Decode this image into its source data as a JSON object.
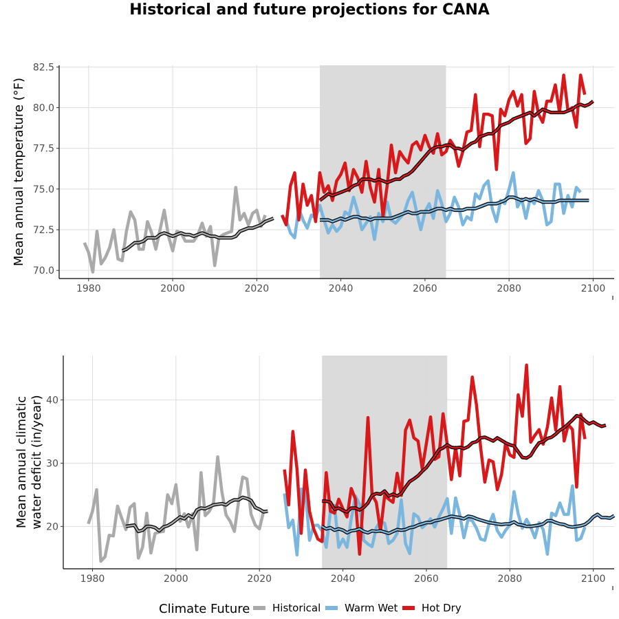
{
  "title": "Historical and future projections for CANA",
  "colors": {
    "Historical": "#aaaaaa",
    "Warm Wet": "#7ab6de",
    "Hot Dry": "#d7191c",
    "smooth": "#000000",
    "shade": "#d9d9d9"
  },
  "legend": {
    "title": "Climate Future",
    "items": [
      "Historical",
      "Warm Wet",
      "Hot Dry"
    ]
  },
  "chart_data": [
    {
      "type": "line",
      "ylabel": "Mean annual temperature (°F)",
      "xlabel": "",
      "xlim": [
        1973,
        2105
      ],
      "ylim": [
        69.5,
        82.6
      ],
      "xticks": [
        1980,
        2000,
        2020,
        2040,
        2060,
        2080,
        2100
      ],
      "yticks": [
        70.0,
        72.5,
        75.0,
        77.5,
        80.0,
        82.5
      ],
      "ytick_labels": [
        "70.0",
        "72.5",
        "75.0",
        "77.5",
        "80.0",
        "82.5"
      ],
      "shaded_period": [
        2035,
        2065
      ],
      "series": [
        {
          "name": "Historical",
          "x_start": 1979,
          "values": [
            71.7,
            71.1,
            69.9,
            72.4,
            70.4,
            70.8,
            71.4,
            72.5,
            70.7,
            70.6,
            72.4,
            73.6,
            73.1,
            71.3,
            71.3,
            73.0,
            72.3,
            71.3,
            72.5,
            73.7,
            72.1,
            71.2,
            72.4,
            72.3,
            71.8,
            71.8,
            71.8,
            72.2,
            72.9,
            72.1,
            72.7,
            70.3,
            72.0,
            72.2,
            72.3,
            72.4,
            75.1,
            73.1,
            73.5,
            72.8,
            73.5,
            73.7,
            72.7,
            73.4
          ]
        },
        {
          "name": "Warm Wet",
          "x_start": 2026,
          "values": [
            73.3,
            73.1,
            72.3,
            72.0,
            73.8,
            73.1,
            72.6,
            73.4,
            73.2,
            74.0,
            73.1,
            72.3,
            72.8,
            72.4,
            72.7,
            73.6,
            73.4,
            74.5,
            73.6,
            72.5,
            72.9,
            73.3,
            71.9,
            73.5,
            73.0,
            74.2,
            73.1,
            72.9,
            73.2,
            73.5,
            74.3,
            74.8,
            73.6,
            72.5,
            73.6,
            74.1,
            73.2,
            74.9,
            74.1,
            73.0,
            73.5,
            74.5,
            73.9,
            72.8,
            73.3,
            73.1,
            74.7,
            74.4,
            75.2,
            75.5,
            73.8,
            73.0,
            74.3,
            74.1,
            75.0,
            76.0,
            73.9,
            74.4,
            73.2,
            74.4,
            74.1,
            74.9,
            74.3,
            72.8,
            73.0,
            75.3,
            75.3,
            73.5,
            74.6,
            73.9,
            75.1,
            74.8
          ]
        },
        {
          "name": "Hot Dry",
          "x_start": 2026,
          "values": [
            73.4,
            72.8,
            75.2,
            76.0,
            73.1,
            75.3,
            74.0,
            74.6,
            73.0,
            76.0,
            74.8,
            75.2,
            74.3,
            75.5,
            75.9,
            76.6,
            74.9,
            76.2,
            75.7,
            74.8,
            76.7,
            75.1,
            74.2,
            76.2,
            73.3,
            75.2,
            77.7,
            76.0,
            77.3,
            76.9,
            76.6,
            77.7,
            77.9,
            77.4,
            78.3,
            77.6,
            77.2,
            78.4,
            77.1,
            77.3,
            78.0,
            77.6,
            76.4,
            77.3,
            78.5,
            78.6,
            80.8,
            77.6,
            79.6,
            79.6,
            79.5,
            76.2,
            79.9,
            79.5,
            80.5,
            81.0,
            80.1,
            80.8,
            77.8,
            78.1,
            81.0,
            79.6,
            79.1,
            80.4,
            80.4,
            81.4,
            79.7,
            82.0,
            79.8,
            80.0,
            78.8,
            82.0,
            80.8
          ]
        }
      ],
      "smooth_series": [
        {
          "name": "Historical (rolling mean)",
          "x_start": 1988,
          "values": [
            71.2,
            71.3,
            71.5,
            71.7,
            71.7,
            71.8,
            72.0,
            72.0,
            72.0,
            72.2,
            72.3,
            72.2,
            72.1,
            72.2,
            72.3,
            72.2,
            72.2,
            72.1,
            72.2,
            72.3,
            72.2,
            72.1,
            72.1,
            72.0,
            72.0,
            72.0,
            72.0,
            72.1,
            72.4,
            72.5,
            72.6,
            72.6,
            72.7,
            72.8,
            73.0,
            73.1,
            73.2
          ]
        },
        {
          "name": "Warm Wet (rolling mean)",
          "x_start": 2035,
          "values": [
            73.1,
            73.1,
            73.1,
            73.0,
            73.1,
            73.2,
            73.1,
            73.2,
            73.3,
            73.3,
            73.2,
            73.2,
            73.1,
            73.2,
            73.2,
            73.2,
            73.2,
            73.2,
            73.3,
            73.4,
            73.5,
            73.6,
            73.5,
            73.5,
            73.6,
            73.6,
            73.6,
            73.7,
            73.8,
            73.8,
            73.7,
            73.8,
            73.7,
            73.7,
            73.7,
            73.8,
            73.8,
            73.8,
            73.9,
            74.0,
            74.1,
            74.1,
            74.1,
            74.2,
            74.3,
            74.5,
            74.5,
            74.4,
            74.3,
            74.4,
            74.3,
            74.4,
            74.3,
            74.2,
            74.2,
            74.2,
            74.2,
            74.3,
            74.3,
            74.3,
            74.3,
            74.3,
            74.3,
            74.3,
            74.3
          ]
        },
        {
          "name": "Hot Dry (rolling mean)",
          "x_start": 2035,
          "values": [
            74.3,
            74.5,
            74.7,
            74.6,
            74.7,
            74.8,
            74.9,
            75.0,
            75.2,
            75.3,
            75.6,
            75.6,
            75.6,
            75.5,
            75.6,
            75.5,
            75.4,
            75.5,
            75.6,
            75.6,
            75.8,
            75.9,
            76.1,
            76.4,
            76.7,
            77.0,
            77.3,
            77.5,
            77.6,
            77.6,
            77.7,
            77.7,
            77.5,
            77.5,
            77.4,
            77.6,
            77.8,
            77.9,
            78.2,
            78.3,
            78.4,
            78.4,
            78.6,
            78.9,
            79.0,
            79.1,
            79.3,
            79.4,
            79.5,
            79.6,
            79.7,
            79.5,
            79.7,
            79.9,
            79.8,
            79.7,
            79.7,
            79.7,
            79.7,
            79.8,
            79.9,
            80.1,
            80.2,
            80.1,
            80.2,
            80.4
          ]
        }
      ]
    },
    {
      "type": "line",
      "ylabel": "Mean annual climatic water deficit (in/year)",
      "ylabel_lines": [
        "Mean annual climatic",
        "water deficit (in/year)"
      ],
      "xlabel": "",
      "xlim": [
        1973,
        2105
      ],
      "ylim": [
        13.3,
        47
      ],
      "xticks": [
        1980,
        2000,
        2020,
        2040,
        2060,
        2080,
        2100
      ],
      "yticks": [
        20,
        30,
        40
      ],
      "ytick_labels": [
        "20",
        "30",
        "40"
      ],
      "shaded_period": [
        2035,
        2065
      ],
      "series": [
        {
          "name": "Historical",
          "x_start": 1979,
          "values": [
            20.4,
            22.4,
            25.8,
            14.5,
            15.2,
            18.6,
            18.5,
            23.2,
            21.3,
            19.5,
            23.0,
            23.6,
            15.0,
            16.7,
            22.1,
            15.8,
            18.9,
            19.1,
            19.2,
            25.0,
            23.6,
            26.6,
            20.8,
            22.0,
            19.9,
            22.0,
            16.3,
            28.5,
            21.7,
            22.4,
            23.8,
            31.0,
            25.5,
            21.8,
            20.8,
            19.2,
            23.9,
            27.8,
            27.5,
            21.9,
            20.2,
            19.6,
            22.4,
            22.4
          ]
        },
        {
          "name": "Warm Wet",
          "x_start": 2026,
          "values": [
            25.2,
            19.8,
            21.0,
            15.5,
            25.9,
            25.8,
            17.8,
            20.1,
            20.2,
            19.3,
            16.7,
            22.4,
            23.3,
            16.7,
            18.0,
            16.7,
            21.2,
            24.8,
            23.5,
            17.8,
            17.2,
            16.8,
            19.8,
            20.8,
            20.5,
            17.3,
            17.8,
            18.9,
            24.2,
            17.3,
            15.7,
            22.0,
            21.5,
            19.8,
            20.4,
            21.2,
            19.9,
            21.5,
            22.8,
            24.4,
            18.9,
            24.5,
            21.8,
            18.2,
            21.1,
            20.9,
            19.7,
            18.0,
            17.8,
            20.4,
            21.9,
            19.3,
            18.3,
            19.4,
            20.2,
            25.5,
            22.0,
            19.7,
            21.1,
            19.9,
            18.2,
            20.6,
            19.5,
            15.6,
            22.1,
            21.7,
            23.7,
            21.9,
            21.9,
            26.4,
            17.8,
            18.1,
            19.9
          ]
        },
        {
          "name": "Hot Dry",
          "x_start": 2026,
          "values": [
            29.0,
            23.4,
            35.0,
            29.1,
            18.9,
            28.9,
            22.4,
            19.6,
            18.0,
            17.6,
            28.5,
            22.4,
            22.1,
            24.3,
            22.8,
            21.5,
            26.0,
            24.3,
            15.6,
            25.2,
            37.2,
            25.0,
            23.8,
            19.2,
            24.9,
            24.3,
            23.8,
            28.4,
            24.9,
            35.2,
            36.8,
            34.0,
            33.5,
            29.1,
            33.1,
            37.3,
            30.6,
            31.0,
            37.8,
            32.9,
            27.4,
            32.5,
            28.0,
            36.6,
            36.8,
            43.6,
            39.2,
            32.5,
            27.0,
            30.5,
            30.2,
            25.8,
            28.2,
            33.2,
            31.3,
            30.9,
            40.8,
            37.4,
            45.5,
            33.3,
            34.4,
            35.3,
            33.0,
            35.7,
            40.3,
            35.2,
            42.1,
            33.5,
            36.1,
            35.3,
            26.2,
            37.7,
            33.8
          ]
        }
      ],
      "smooth_series": [
        {
          "name": "Historical (rolling mean)",
          "x_start": 1988,
          "values": [
            20.0,
            20.1,
            20.2,
            19.2,
            19.4,
            20.0,
            20.0,
            19.8,
            19.3,
            19.9,
            20.1,
            20.5,
            21.0,
            21.5,
            21.2,
            21.8,
            21.4,
            22.6,
            22.9,
            22.8,
            23.1,
            23.4,
            23.5,
            23.6,
            23.4,
            23.9,
            24.2,
            24.2,
            24.6,
            24.4,
            24.1,
            23.0,
            22.7,
            22.3,
            22.4
          ]
        },
        {
          "name": "Warm Wet (rolling mean)",
          "x_start": 2035,
          "values": [
            20.0,
            19.6,
            19.8,
            19.4,
            19.6,
            19.4,
            19.0,
            19.3,
            19.4,
            19.6,
            19.2,
            19.0,
            19.3,
            19.2,
            19.3,
            19.1,
            18.9,
            19.2,
            19.5,
            19.4,
            19.5,
            19.8,
            19.9,
            20.2,
            20.4,
            20.6,
            20.6,
            20.9,
            21.0,
            21.2,
            21.4,
            21.6,
            21.5,
            21.4,
            21.2,
            21.6,
            21.5,
            21.2,
            21.0,
            20.8,
            20.6,
            20.5,
            20.4,
            20.3,
            20.4,
            20.4,
            20.7,
            20.3,
            20.2,
            20.0,
            20.0,
            20.1,
            20.2,
            20.4,
            20.9,
            20.9,
            20.6,
            20.4,
            20.3,
            20.0,
            19.9,
            20.0,
            20.1,
            20.3,
            20.8,
            21.5,
            21.9,
            21.4,
            21.4,
            21.3,
            21.7
          ]
        },
        {
          "name": "Hot Dry (rolling mean)",
          "x_start": 2035,
          "values": [
            24.0,
            24.0,
            23.8,
            22.7,
            22.9,
            22.5,
            22.3,
            22.9,
            22.9,
            22.6,
            23.0,
            23.7,
            24.9,
            25.2,
            25.1,
            25.6,
            24.8,
            25.1,
            24.8,
            25.2,
            26.2,
            27.1,
            27.5,
            28.0,
            28.7,
            29.3,
            30.2,
            31.1,
            32.1,
            32.4,
            32.9,
            32.5,
            32.4,
            32.5,
            32.3,
            32.6,
            33.2,
            33.4,
            34.0,
            34.1,
            33.8,
            33.5,
            34.0,
            33.6,
            33.2,
            32.9,
            32.7,
            31.8,
            30.9,
            30.8,
            31.2,
            32.3,
            33.2,
            33.4,
            33.9,
            34.1,
            34.6,
            35.2,
            35.6,
            36.2,
            36.8,
            37.5,
            37.3,
            36.7,
            36.2,
            36.5,
            36.1,
            35.8,
            36.0
          ]
        }
      ]
    }
  ]
}
